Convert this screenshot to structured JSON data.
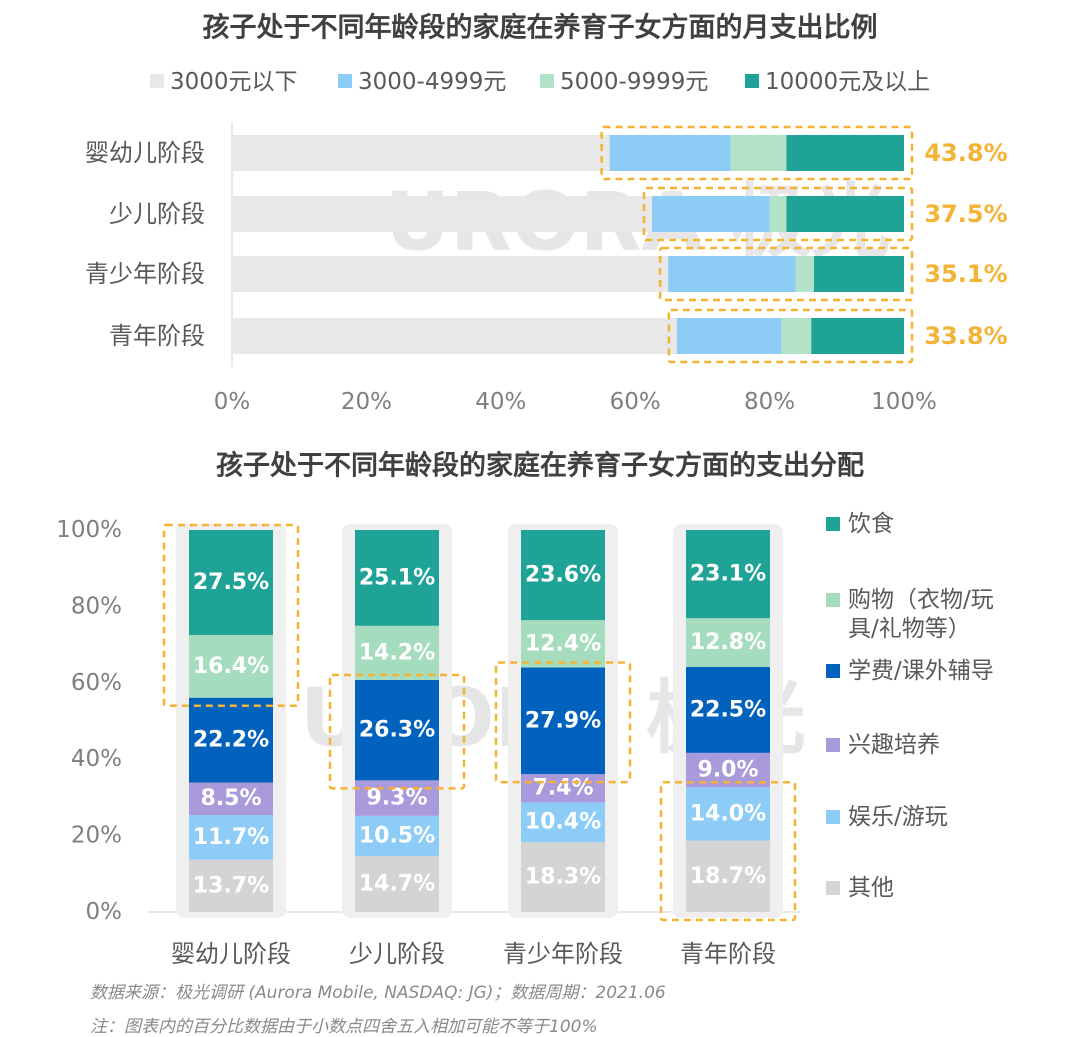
{
  "colors": {
    "text": "#595959",
    "title": "#404040",
    "accent": "#F5B335",
    "track": "#E8E8E8",
    "watermark": "#E6E6E6"
  },
  "watermark": "URORA 极光",
  "footer": {
    "source": "数据来源：极光调研 (Aurora Mobile, NASDAQ: JG)；数据周期：2021.06",
    "note": "注：图表内的百分比数据由于小数点四舍五入相加可能不等于100%"
  },
  "chart_data": [
    {
      "type": "bar",
      "orientation": "horizontal",
      "stacked": true,
      "title": "孩子处于不同年龄段的家庭在养育子女方面的月支出比例",
      "categories": [
        "婴幼儿阶段",
        "少儿阶段",
        "青少年阶段",
        "青年阶段"
      ],
      "series": [
        {
          "name": "3000元以下",
          "color": "#E8E8E8",
          "values": [
            56.2,
            62.5,
            64.9,
            66.2
          ]
        },
        {
          "name": "3000-4999元",
          "color": "#8DCCF7",
          "values": [
            18.0,
            17.5,
            19.0,
            15.5
          ]
        },
        {
          "name": "5000-9999元",
          "color": "#B2E2C8",
          "values": [
            8.3,
            2.5,
            2.7,
            4.5
          ]
        },
        {
          "name": "10000元及以上",
          "color": "#1FA396",
          "values": [
            17.5,
            17.5,
            13.4,
            13.8
          ]
        }
      ],
      "highlight_labels": [
        "43.8%",
        "37.5%",
        "35.1%",
        "33.8%"
      ],
      "xticks": [
        "0%",
        "20%",
        "40%",
        "60%",
        "80%",
        "100%"
      ],
      "xlim": [
        0,
        100
      ],
      "legend": "top"
    },
    {
      "type": "bar",
      "orientation": "vertical",
      "stacked": true,
      "title": "孩子处于不同年龄段的家庭在养育子女方面的支出分配",
      "categories": [
        "婴幼儿阶段",
        "少儿阶段",
        "青少年阶段",
        "青年阶段"
      ],
      "series": [
        {
          "name": "其他",
          "color": "#D4D4D4",
          "values": [
            13.7,
            14.7,
            18.3,
            18.7
          ],
          "labels": [
            "13.7%",
            "14.7%",
            "18.3%",
            "18.7%"
          ]
        },
        {
          "name": "娱乐/游玩",
          "color": "#8DCCF7",
          "values": [
            11.7,
            10.5,
            10.4,
            14.0
          ],
          "labels": [
            "11.7%",
            "10.5%",
            "10.4%",
            "14.0%"
          ]
        },
        {
          "name": "兴趣培养",
          "color": "#A99BDB",
          "values": [
            8.5,
            9.3,
            7.4,
            9.0
          ],
          "labels": [
            "8.5%",
            "9.3%",
            "7.4%",
            "9.0%"
          ]
        },
        {
          "name": "学费/课外辅导",
          "color": "#0062BD",
          "values": [
            22.2,
            26.3,
            27.9,
            22.5
          ],
          "labels": [
            "22.2%",
            "26.3%",
            "27.9%",
            "22.5%"
          ]
        },
        {
          "name": "购物（衣物/玩具/礼物等）",
          "legend_lines": [
            "购物（衣物/玩",
            "具/礼物等）"
          ],
          "color": "#A5DCBE",
          "values": [
            16.4,
            14.2,
            12.4,
            12.8
          ],
          "labels": [
            "16.4%",
            "14.2%",
            "12.4%",
            "12.8%"
          ]
        },
        {
          "name": "饮食",
          "color": "#1FA396",
          "values": [
            27.5,
            25.1,
            23.6,
            23.1
          ],
          "labels": [
            "27.5%",
            "25.1%",
            "23.6%",
            "23.1%"
          ]
        }
      ],
      "highlights": [
        {
          "category": 0,
          "series": [
            4,
            5
          ]
        },
        {
          "category": 1,
          "series": [
            3
          ]
        },
        {
          "category": 2,
          "series": [
            3
          ]
        },
        {
          "category": 3,
          "series": [
            0,
            1
          ]
        }
      ],
      "yticks": [
        "0%",
        "20%",
        "40%",
        "60%",
        "80%",
        "100%"
      ],
      "ylim": [
        0,
        100
      ],
      "legend": "right"
    }
  ]
}
